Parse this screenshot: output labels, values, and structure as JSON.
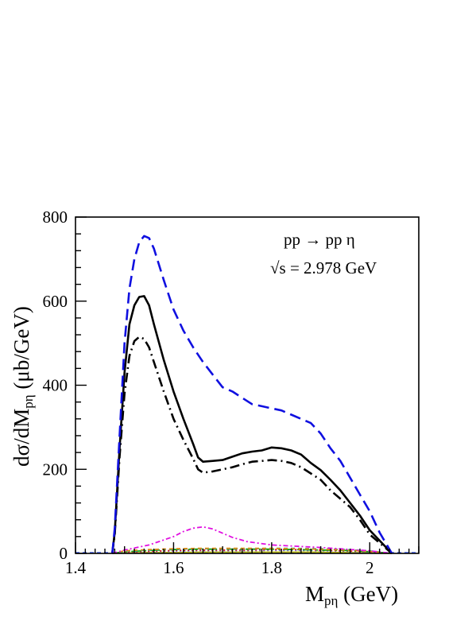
{
  "chart_data": {
    "type": "line",
    "xlabel": {
      "main": "M",
      "sub": "pη",
      "rest": " (GeV)"
    },
    "ylabel": {
      "pre": "dσ/dM",
      "sub": "pη",
      "rest": " (μb/GeV)"
    },
    "annotation": {
      "reaction": "pp → pp η",
      "energy_sym": "√s",
      "energy": " = 2.978 GeV"
    },
    "xlim": [
      1.4,
      2.1
    ],
    "ylim": [
      0,
      800
    ],
    "xticks": [
      1.4,
      1.6,
      1.8,
      2.0
    ],
    "xtick_labels": [
      "1.4",
      "1.6",
      "1.8",
      "2"
    ],
    "yticks": [
      0,
      200,
      400,
      600,
      800
    ],
    "ytick_labels": [
      "0",
      "200",
      "400",
      "600",
      "800"
    ],
    "series": [
      {
        "color": "#1010e0",
        "dash": "long-dash",
        "x": [
          1.475,
          1.48,
          1.49,
          1.5,
          1.51,
          1.52,
          1.53,
          1.54,
          1.55,
          1.56,
          1.58,
          1.6,
          1.62,
          1.64,
          1.66,
          1.68,
          1.7,
          1.72,
          1.74,
          1.76,
          1.78,
          1.8,
          1.82,
          1.84,
          1.86,
          1.88,
          1.9,
          1.92,
          1.94,
          1.96,
          1.98,
          2.0,
          2.02,
          2.045
        ],
        "y": [
          0,
          60,
          280,
          500,
          630,
          700,
          740,
          755,
          750,
          725,
          650,
          580,
          530,
          490,
          455,
          425,
          395,
          385,
          370,
          355,
          350,
          345,
          340,
          330,
          320,
          310,
          285,
          250,
          220,
          180,
          140,
          100,
          50,
          0
        ]
      },
      {
        "color": "#000000",
        "dash": "solid",
        "x": [
          1.475,
          1.48,
          1.49,
          1.5,
          1.51,
          1.52,
          1.53,
          1.54,
          1.55,
          1.56,
          1.58,
          1.6,
          1.62,
          1.64,
          1.65,
          1.66,
          1.68,
          1.7,
          1.72,
          1.74,
          1.76,
          1.78,
          1.8,
          1.82,
          1.84,
          1.86,
          1.88,
          1.9,
          1.92,
          1.94,
          1.96,
          1.98,
          2.0,
          2.045
        ],
        "y": [
          0,
          50,
          250,
          430,
          545,
          590,
          610,
          612,
          590,
          545,
          460,
          385,
          320,
          260,
          228,
          218,
          220,
          222,
          230,
          238,
          242,
          245,
          252,
          250,
          245,
          235,
          215,
          198,
          175,
          150,
          120,
          90,
          55,
          0
        ]
      },
      {
        "color": "#000000",
        "dash": "dash-dot",
        "x": [
          1.475,
          1.48,
          1.49,
          1.5,
          1.51,
          1.52,
          1.53,
          1.54,
          1.55,
          1.56,
          1.58,
          1.6,
          1.62,
          1.64,
          1.65,
          1.66,
          1.68,
          1.7,
          1.72,
          1.74,
          1.76,
          1.78,
          1.8,
          1.82,
          1.84,
          1.86,
          1.88,
          1.9,
          1.92,
          1.94,
          1.96,
          1.98,
          2.0,
          2.045
        ],
        "y": [
          0,
          45,
          230,
          380,
          470,
          505,
          515,
          510,
          490,
          455,
          385,
          320,
          270,
          225,
          200,
          192,
          195,
          200,
          205,
          212,
          218,
          220,
          222,
          220,
          215,
          205,
          190,
          175,
          150,
          130,
          110,
          80,
          45,
          0
        ]
      },
      {
        "color": "#e010e0",
        "dash": "dash-dot-fine",
        "x": [
          1.475,
          1.5,
          1.55,
          1.6,
          1.62,
          1.64,
          1.66,
          1.68,
          1.7,
          1.72,
          1.75,
          1.8,
          1.85,
          1.9,
          1.95,
          2.0,
          2.045
        ],
        "y": [
          0,
          8,
          20,
          40,
          52,
          60,
          63,
          58,
          48,
          38,
          28,
          20,
          17,
          14,
          10,
          6,
          0
        ]
      },
      {
        "color": "#e08a10",
        "dash": "short-dash",
        "x": [
          1.475,
          1.5,
          1.55,
          1.6,
          1.65,
          1.7,
          1.75,
          1.8,
          1.85,
          1.9,
          1.95,
          2.0,
          2.045
        ],
        "y": [
          0,
          6,
          9,
          11,
          12,
          12,
          12,
          12,
          11,
          10,
          8,
          5,
          0
        ]
      },
      {
        "color": "#10b0b0",
        "dash": "short-dash",
        "x": [
          1.475,
          1.5,
          1.55,
          1.6,
          1.65,
          1.7,
          1.75,
          1.8,
          1.85,
          1.9,
          1.95,
          2.0,
          2.045
        ],
        "y": [
          0,
          5,
          8,
          10,
          11,
          11,
          11,
          12,
          12,
          11,
          9,
          6,
          0
        ]
      },
      {
        "color": "#10a010",
        "dash": "dash-dot",
        "x": [
          1.475,
          1.5,
          1.55,
          1.6,
          1.65,
          1.7,
          1.75,
          1.8,
          1.85,
          1.9,
          1.95,
          2.0,
          2.045
        ],
        "y": [
          0,
          4,
          7,
          9,
          10,
          10,
          10,
          10,
          9,
          8,
          7,
          4,
          0
        ]
      },
      {
        "color": "#e01010",
        "dash": "dotted",
        "x": [
          1.475,
          1.5,
          1.55,
          1.6,
          1.65,
          1.7,
          1.75,
          1.8,
          1.85,
          1.9,
          1.95,
          2.0,
          2.045
        ],
        "y": [
          0,
          3,
          5,
          7,
          8,
          8,
          8,
          9,
          9,
          8,
          6,
          4,
          0
        ]
      },
      {
        "color": "#7070ff",
        "dash": "dotted",
        "x": [
          1.475,
          1.5,
          1.55,
          1.6,
          1.65,
          1.7,
          1.75,
          1.8,
          1.85,
          1.9,
          1.95,
          2.0,
          2.045
        ],
        "y": [
          0,
          2,
          4,
          5,
          6,
          6,
          6,
          7,
          7,
          6,
          5,
          3,
          0
        ]
      },
      {
        "color": "#c0c010",
        "dash": "solid",
        "x": [
          1.475,
          1.5,
          1.55,
          1.6,
          1.65,
          1.7,
          1.75,
          1.8,
          1.85,
          1.9,
          1.95,
          2.0,
          2.045
        ],
        "y": [
          0,
          1,
          2,
          2,
          3,
          3,
          3,
          3,
          3,
          3,
          2,
          1,
          0
        ]
      }
    ],
    "baseline": {
      "color": "#4060ff",
      "dash": "short-dash"
    }
  }
}
